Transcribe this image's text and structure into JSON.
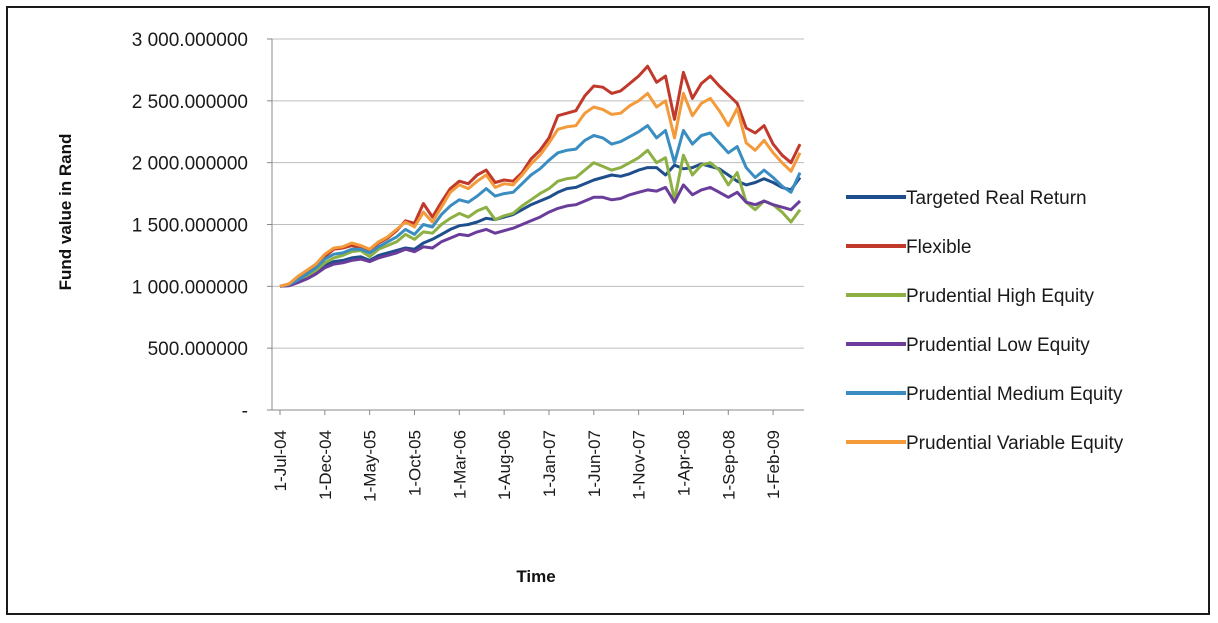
{
  "chart_data": {
    "type": "line",
    "xlabel": "Time",
    "ylabel": "Fund value in Rand",
    "ylim": [
      0,
      3000
    ],
    "yticks": [
      0,
      500,
      1000,
      1500,
      2000,
      2500,
      3000
    ],
    "ytick_labels": [
      "-",
      "500.000000",
      "1 000.000000",
      "1 500.000000",
      "2 000.000000",
      "2 500.000000",
      "3 000.000000"
    ],
    "grid": true,
    "legend_position": "right",
    "x": [
      "Jul-04",
      "Aug-04",
      "Sep-04",
      "Oct-04",
      "Nov-04",
      "Dec-04",
      "Jan-05",
      "Feb-05",
      "Mar-05",
      "Apr-05",
      "May-05",
      "Jun-05",
      "Jul-05",
      "Aug-05",
      "Sep-05",
      "Oct-05",
      "Nov-05",
      "Dec-05",
      "Jan-06",
      "Feb-06",
      "Mar-06",
      "Apr-06",
      "May-06",
      "Jun-06",
      "Jul-06",
      "Aug-06",
      "Sep-06",
      "Oct-06",
      "Nov-06",
      "Dec-06",
      "Jan-07",
      "Feb-07",
      "Mar-07",
      "Apr-07",
      "May-07",
      "Jun-07",
      "Jul-07",
      "Aug-07",
      "Sep-07",
      "Oct-07",
      "Nov-07",
      "Dec-07",
      "Jan-08",
      "Feb-08",
      "Mar-08",
      "Apr-08",
      "May-08",
      "Jun-08",
      "Jul-08",
      "Aug-08",
      "Sep-08",
      "Oct-08",
      "Nov-08",
      "Dec-08",
      "Jan-09",
      "Feb-09",
      "Mar-09",
      "Apr-09",
      "May-09"
    ],
    "xtick_labels": [
      "1-Jul-04",
      "1-Dec-04",
      "1-May-05",
      "1-Oct-05",
      "1-Mar-06",
      "1-Aug-06",
      "1-Jan-07",
      "1-Jun-07",
      "1-Nov-07",
      "1-Apr-08",
      "1-Sep-08",
      "1-Feb-09"
    ],
    "series": [
      {
        "name": "Targeted Real Return",
        "color": "#1f4e8c",
        "values": [
          1000,
          1010,
          1040,
          1080,
          1120,
          1170,
          1200,
          1210,
          1230,
          1240,
          1210,
          1250,
          1270,
          1290,
          1310,
          1300,
          1350,
          1380,
          1420,
          1460,
          1490,
          1500,
          1520,
          1550,
          1540,
          1560,
          1580,
          1620,
          1660,
          1690,
          1720,
          1760,
          1790,
          1800,
          1830,
          1860,
          1880,
          1900,
          1890,
          1910,
          1940,
          1960,
          1960,
          1900,
          1980,
          1950,
          1960,
          1990,
          1970,
          1950,
          1900,
          1850,
          1820,
          1840,
          1870,
          1840,
          1800,
          1780,
          1880
        ]
      },
      {
        "name": "Flexible",
        "color": "#c0392b",
        "values": [
          1000,
          1020,
          1070,
          1120,
          1160,
          1240,
          1300,
          1310,
          1330,
          1310,
          1290,
          1350,
          1390,
          1450,
          1530,
          1510,
          1670,
          1560,
          1680,
          1790,
          1850,
          1830,
          1900,
          1940,
          1840,
          1860,
          1850,
          1920,
          2030,
          2100,
          2200,
          2380,
          2400,
          2420,
          2540,
          2620,
          2610,
          2560,
          2580,
          2640,
          2700,
          2780,
          2650,
          2700,
          2350,
          2730,
          2520,
          2640,
          2700,
          2620,
          2550,
          2480,
          2280,
          2240,
          2300,
          2150,
          2060,
          2000,
          2150
        ]
      },
      {
        "name": "Prudential High Equity",
        "color": "#8cb043",
        "values": [
          1000,
          1010,
          1040,
          1080,
          1130,
          1190,
          1230,
          1250,
          1280,
          1290,
          1240,
          1300,
          1330,
          1360,
          1420,
          1380,
          1440,
          1430,
          1500,
          1550,
          1590,
          1560,
          1610,
          1640,
          1540,
          1570,
          1590,
          1650,
          1700,
          1750,
          1790,
          1850,
          1870,
          1880,
          1940,
          2000,
          1970,
          1940,
          1960,
          2000,
          2040,
          2100,
          2000,
          2040,
          1700,
          2060,
          1900,
          1980,
          2000,
          1940,
          1820,
          1920,
          1680,
          1620,
          1690,
          1660,
          1600,
          1520,
          1620
        ]
      },
      {
        "name": "Prudential Low Equity",
        "color": "#6a3d9a",
        "values": [
          1000,
          1005,
          1030,
          1060,
          1100,
          1150,
          1180,
          1190,
          1210,
          1220,
          1200,
          1230,
          1250,
          1270,
          1300,
          1280,
          1320,
          1310,
          1360,
          1390,
          1420,
          1410,
          1440,
          1460,
          1430,
          1450,
          1470,
          1500,
          1530,
          1560,
          1600,
          1630,
          1650,
          1660,
          1690,
          1720,
          1720,
          1700,
          1710,
          1740,
          1760,
          1780,
          1770,
          1800,
          1680,
          1820,
          1740,
          1780,
          1800,
          1760,
          1720,
          1760,
          1680,
          1660,
          1690,
          1660,
          1640,
          1620,
          1690
        ]
      },
      {
        "name": "Prudential Medium Equity",
        "color": "#3a8dc0",
        "values": [
          1000,
          1015,
          1050,
          1100,
          1150,
          1220,
          1260,
          1270,
          1300,
          1300,
          1270,
          1320,
          1360,
          1400,
          1460,
          1420,
          1500,
          1480,
          1580,
          1650,
          1700,
          1680,
          1730,
          1790,
          1730,
          1750,
          1760,
          1830,
          1900,
          1950,
          2020,
          2080,
          2100,
          2110,
          2180,
          2220,
          2200,
          2150,
          2170,
          2210,
          2250,
          2300,
          2200,
          2260,
          2000,
          2260,
          2150,
          2220,
          2240,
          2160,
          2080,
          2130,
          1960,
          1880,
          1940,
          1880,
          1810,
          1760,
          1920
        ]
      },
      {
        "name": "Prudential Variable Equity",
        "color": "#f39a3a",
        "values": [
          1000,
          1020,
          1080,
          1130,
          1180,
          1260,
          1310,
          1320,
          1350,
          1330,
          1300,
          1360,
          1400,
          1460,
          1520,
          1480,
          1600,
          1520,
          1640,
          1760,
          1820,
          1790,
          1850,
          1900,
          1800,
          1830,
          1820,
          1900,
          1990,
          2060,
          2160,
          2270,
          2290,
          2300,
          2400,
          2450,
          2430,
          2390,
          2400,
          2460,
          2500,
          2560,
          2450,
          2500,
          2200,
          2560,
          2380,
          2480,
          2520,
          2420,
          2300,
          2440,
          2160,
          2100,
          2180,
          2080,
          2000,
          1930,
          2080
        ]
      }
    ]
  }
}
